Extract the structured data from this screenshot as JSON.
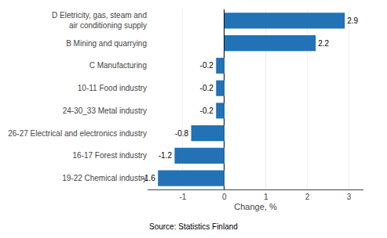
{
  "chart_data": {
    "type": "bar",
    "orientation": "horizontal",
    "categories": [
      "19-22 Chemical industry",
      "16-17 Forest industry",
      "26-27 Electrical and electronics industry",
      "24-30_33 Metal industry",
      "10-11 Food industry",
      "C Manufacturing",
      "B Mining and quarrying",
      "D Eletricity, gas, steam and\nair conditioning supply"
    ],
    "values": [
      -1.6,
      -1.2,
      -0.8,
      -0.2,
      -0.2,
      -0.2,
      2.2,
      2.9
    ],
    "color": "#2272b5",
    "xlabel": "Change, %",
    "xlim": [
      -1.85,
      3.35
    ],
    "xticks": [
      -1,
      0,
      1,
      2,
      3
    ],
    "grid": true,
    "data_labels": true,
    "annotations": [
      "Source: Statistics Finland"
    ]
  }
}
